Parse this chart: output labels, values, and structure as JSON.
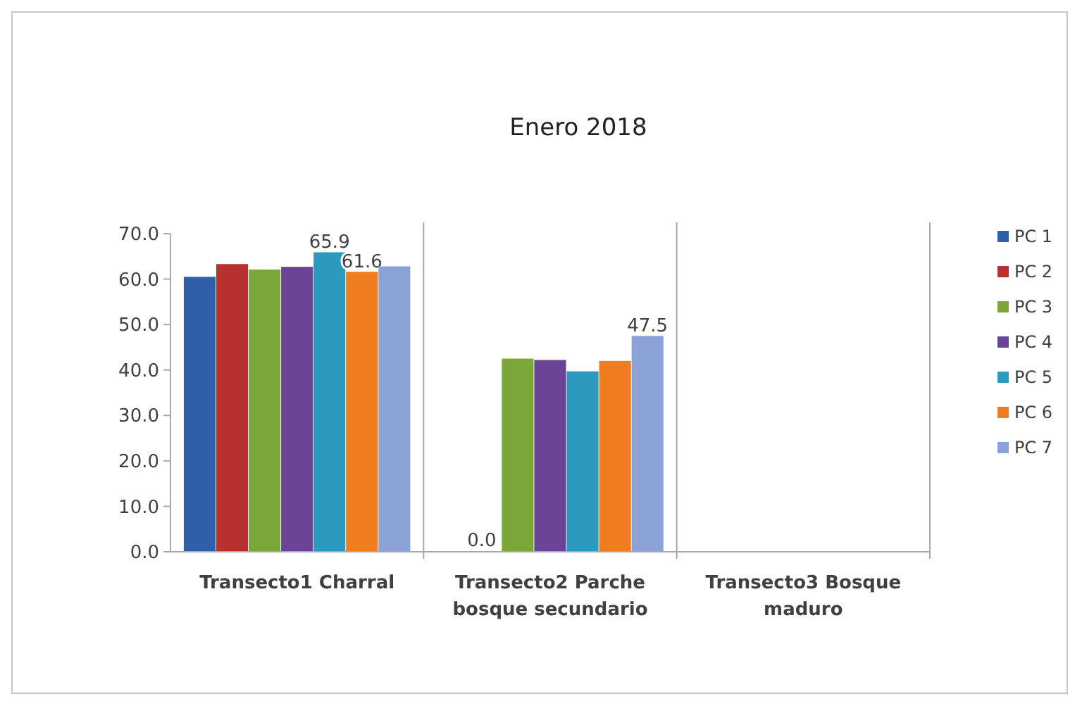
{
  "chart_data": {
    "type": "bar",
    "title": "Enero 2018",
    "categories": [
      "Transecto1 Charral",
      "Transecto2 Parche bosque secundario",
      "Transecto3 Bosque maduro"
    ],
    "series": [
      {
        "name": "PC 1",
        "color": "#2e5fa8",
        "values": [
          60.5,
          null,
          null
        ]
      },
      {
        "name": "PC 2",
        "color": "#b8312f",
        "values": [
          63.3,
          0.0,
          null
        ]
      },
      {
        "name": "PC 3",
        "color": "#7aa63a",
        "values": [
          62.1,
          42.5,
          null
        ]
      },
      {
        "name": "PC 4",
        "color": "#6a4595",
        "values": [
          62.7,
          42.2,
          null
        ]
      },
      {
        "name": "PC 5",
        "color": "#2a9bbf",
        "values": [
          65.9,
          39.7,
          null
        ],
        "value_labels": [
          "65.9",
          null,
          null
        ]
      },
      {
        "name": "PC 6",
        "color": "#ef7d1f",
        "values": [
          61.6,
          42.0,
          null
        ],
        "value_labels": [
          "61.6",
          null,
          null
        ]
      },
      {
        "name": "PC 7",
        "color": "#8aa2d6",
        "values": [
          62.8,
          47.5,
          null
        ],
        "value_labels": [
          null,
          "47.5",
          null
        ]
      }
    ],
    "ylim": [
      0,
      70
    ],
    "yticks": [
      {
        "value": 0,
        "label": "0.0"
      },
      {
        "value": 10,
        "label": "10.0"
      },
      {
        "value": 20,
        "label": "20.0"
      },
      {
        "value": 30,
        "label": "30.0"
      },
      {
        "value": 40,
        "label": "40.0"
      },
      {
        "value": 50,
        "label": "50.0"
      },
      {
        "value": 60,
        "label": "60.0"
      },
      {
        "value": 70,
        "label": "70.0"
      }
    ],
    "annotations": [
      {
        "text": "0.0",
        "x": "Transecto2 Parche bosque secundario",
        "y": 0
      }
    ],
    "grid": "x",
    "legend": "right"
  }
}
